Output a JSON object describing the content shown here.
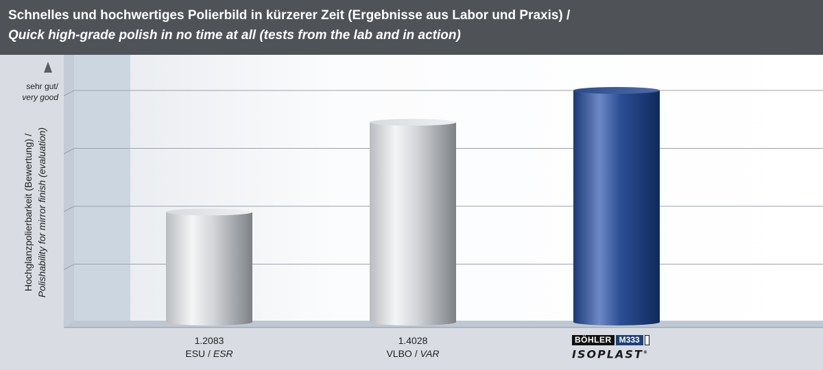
{
  "header": {
    "title_de": "Schnelles und hochwertiges Polierbild in kürzerer Zeit (Ergebnisse aus Labor und Praxis) /",
    "title_en": "Quick high-grade polish in no time at all (tests from the lab and in action)"
  },
  "chart_data": {
    "type": "bar",
    "title": "Schnelles und hochwertiges Polierbild in kürzerer Zeit (Ergebnisse aus Labor und Praxis) / Quick high-grade polish in no time at all (tests from the lab and in action)",
    "ylabel_de": "Hochglanzpolierbarkeit (Bewertung) /",
    "ylabel_en": "Polishability for mirror finish (evaluation)",
    "y_top_label_de": "sehr gut/",
    "y_top_label_en": "very good",
    "ylim": [
      0,
      4
    ],
    "grid": true,
    "categories": [
      {
        "code": "1.2083",
        "name": "ESU / ",
        "name_en": "ESR",
        "value": 1.9,
        "color": "#b0b3b7"
      },
      {
        "code": "1.4028",
        "name": "VLBO / ",
        "name_en": "VAR",
        "value": 3.45,
        "color": "#b0b3b7"
      },
      {
        "code": "",
        "name": "",
        "name_en": "",
        "value": 4.0,
        "color": "#1c3f7a",
        "brand": {
          "bohler": "BÖHLER",
          "grade": "M333",
          "isoplast": "ISOPLAST",
          "reg": "®"
        }
      }
    ]
  }
}
